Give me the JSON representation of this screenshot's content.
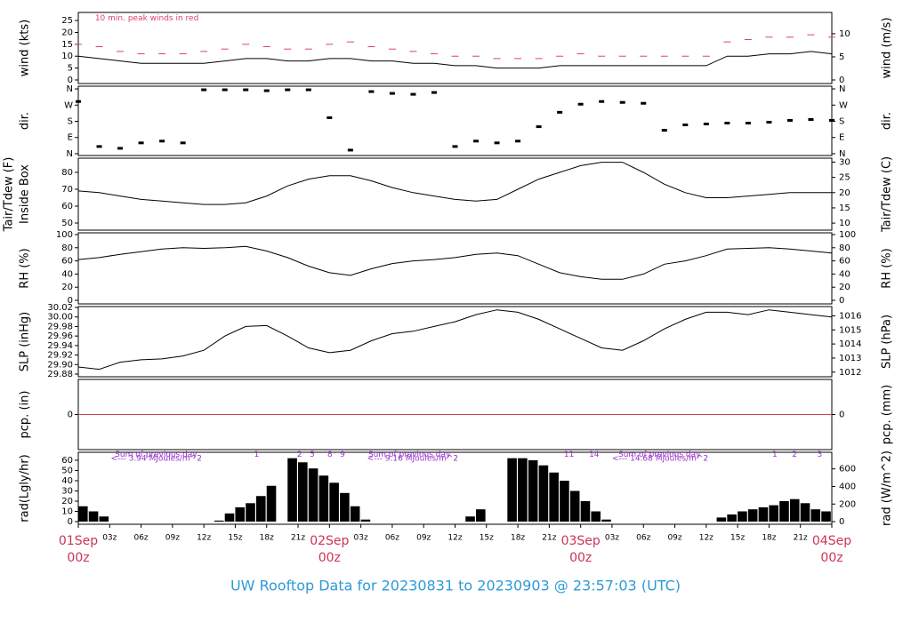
{
  "footer": "UW Rooftop Data for 20230831  to  20230903 @ 23:57:03  (UTC)",
  "x_axis": {
    "xlim": [
      0,
      72
    ],
    "xticks": [
      {
        "value": 0,
        "label": "01Sep",
        "sub": "00z"
      },
      {
        "value": 3,
        "label": "03z"
      },
      {
        "value": 6,
        "label": "06z"
      },
      {
        "value": 9,
        "label": "09z"
      },
      {
        "value": 12,
        "label": "12z"
      },
      {
        "value": 15,
        "label": "15z"
      },
      {
        "value": 18,
        "label": "18z"
      },
      {
        "value": 21,
        "label": "21z"
      },
      {
        "value": 24,
        "label": "02Sep",
        "sub": "00z"
      },
      {
        "value": 27,
        "label": "03z"
      },
      {
        "value": 30,
        "label": "06z"
      },
      {
        "value": 33,
        "label": "09z"
      },
      {
        "value": 36,
        "label": "12z"
      },
      {
        "value": 39,
        "label": "15z"
      },
      {
        "value": 42,
        "label": "18z"
      },
      {
        "value": 45,
        "label": "21z"
      },
      {
        "value": 48,
        "label": "03Sep",
        "sub": "00z"
      },
      {
        "value": 51,
        "label": "03z"
      },
      {
        "value": 54,
        "label": "06z"
      },
      {
        "value": 57,
        "label": "09z"
      },
      {
        "value": 60,
        "label": "12z"
      },
      {
        "value": 63,
        "label": "15z"
      },
      {
        "value": 66,
        "label": "18z"
      },
      {
        "value": 69,
        "label": "21z"
      },
      {
        "value": 72,
        "label": "04Sep",
        "sub": "00z"
      }
    ]
  },
  "chart_data": [
    {
      "type": "line",
      "ylabel": "wind (kts)",
      "y2label": "wind (m/s)",
      "annotations": [
        {
          "x": 1.6,
          "y": 26,
          "label": "10 min. peak winds in red",
          "color": "#e0406a"
        }
      ],
      "ylim": [
        -1.5,
        28.4
      ],
      "yticks": [
        0,
        5,
        10,
        15,
        20,
        25
      ],
      "y2lim": [
        -0.77,
        14.6
      ],
      "y2ticks": [
        0,
        5,
        10
      ],
      "x": [
        0,
        2,
        4,
        6,
        8,
        10,
        12,
        14,
        16,
        18,
        20,
        22,
        24,
        26,
        28,
        30,
        32,
        34,
        36,
        38,
        40,
        42,
        44,
        46,
        48,
        50,
        52,
        54,
        56,
        58,
        60,
        62,
        64,
        66,
        68,
        70,
        72
      ],
      "series": [
        {
          "color": "#000000",
          "values": [
            10,
            9,
            8,
            7,
            7,
            7,
            7,
            8,
            9,
            9,
            8,
            8,
            9,
            9,
            8,
            8,
            7,
            7,
            6,
            6,
            5,
            5,
            5,
            6,
            6,
            6,
            6,
            6,
            6,
            6,
            6,
            10,
            10,
            11,
            11,
            12,
            11
          ]
        },
        {
          "color": "#e0406a",
          "style": "dash",
          "values": [
            15,
            14,
            12,
            11,
            11,
            11,
            12,
            13,
            15,
            14,
            13,
            13,
            15,
            16,
            14,
            13,
            12,
            11,
            10,
            10,
            9,
            9,
            9,
            10,
            11,
            10,
            10,
            10,
            10,
            10,
            10,
            16,
            17,
            18,
            18,
            19,
            18
          ]
        }
      ]
    },
    {
      "type": "scatter",
      "ylabel": "dir.",
      "y2label": "dir.",
      "color": "#000000",
      "ylim": [
        -10,
        375
      ],
      "yticks": [
        {
          "value": 0,
          "label": "N"
        },
        {
          "value": 90,
          "label": "E"
        },
        {
          "value": 180,
          "label": "S"
        },
        {
          "value": 270,
          "label": "W"
        },
        {
          "value": 360,
          "label": "N"
        }
      ],
      "y2lim": [
        -10,
        375
      ],
      "y2ticks": [
        {
          "value": 0,
          "label": "N"
        },
        {
          "value": 90,
          "label": "E"
        },
        {
          "value": 180,
          "label": "S"
        },
        {
          "value": 270,
          "label": "W"
        },
        {
          "value": 360,
          "label": "N"
        }
      ],
      "x": [
        0,
        2,
        4,
        6,
        8,
        10,
        12,
        14,
        16,
        18,
        20,
        22,
        24,
        26,
        28,
        30,
        32,
        34,
        36,
        38,
        40,
        42,
        44,
        46,
        48,
        50,
        52,
        54,
        56,
        58,
        60,
        62,
        64,
        66,
        68,
        70,
        72
      ],
      "values": [
        290,
        40,
        30,
        60,
        70,
        60,
        355,
        355,
        355,
        350,
        355,
        355,
        200,
        20,
        345,
        335,
        330,
        340,
        40,
        70,
        60,
        70,
        150,
        230,
        275,
        290,
        285,
        280,
        130,
        160,
        165,
        170,
        170,
        175,
        185,
        190,
        185
      ]
    },
    {
      "type": "line",
      "ylabel": "Tair/Tdew (F)",
      "ylabel_sub": "Inside Box",
      "y2label": "Tair/Tdew (C)",
      "ylim": [
        45.8,
        88.4
      ],
      "yticks": [
        50,
        60,
        70,
        80
      ],
      "y2lim": [
        7.7,
        31.3
      ],
      "y2ticks": [
        10,
        15,
        20,
        25,
        30
      ],
      "x": [
        0,
        2,
        4,
        6,
        8,
        10,
        12,
        14,
        16,
        18,
        20,
        22,
        24,
        26,
        28,
        30,
        32,
        34,
        36,
        38,
        40,
        42,
        44,
        46,
        48,
        50,
        52,
        54,
        56,
        58,
        60,
        62,
        64,
        66,
        68,
        70,
        72
      ],
      "series": [
        {
          "color": "#000000",
          "values": [
            69,
            68,
            66,
            64,
            63,
            62,
            61,
            61,
            62,
            66,
            72,
            76,
            78,
            78,
            75,
            71,
            68,
            66,
            64,
            63,
            64,
            70,
            76,
            80,
            84,
            86,
            86,
            80,
            73,
            68,
            65,
            65,
            66,
            67,
            68,
            68,
            68
          ]
        }
      ]
    },
    {
      "type": "line",
      "ylabel": "RH (%)",
      "y2label": "RH (%)",
      "ylim": [
        -5.4,
        102.7
      ],
      "yticks": [
        0,
        20,
        40,
        60,
        80,
        100
      ],
      "y2lim": [
        -5.4,
        102.7
      ],
      "y2ticks": [
        0,
        20,
        40,
        60,
        80,
        100
      ],
      "x": [
        0,
        2,
        4,
        6,
        8,
        10,
        12,
        14,
        16,
        18,
        20,
        22,
        24,
        26,
        28,
        30,
        32,
        34,
        36,
        38,
        40,
        42,
        44,
        46,
        48,
        50,
        52,
        54,
        56,
        58,
        60,
        62,
        64,
        66,
        68,
        70,
        72
      ],
      "series": [
        {
          "color": "#000000",
          "values": [
            62,
            65,
            70,
            74,
            78,
            80,
            79,
            80,
            82,
            75,
            65,
            52,
            42,
            38,
            48,
            56,
            60,
            62,
            65,
            70,
            72,
            68,
            55,
            42,
            36,
            32,
            32,
            40,
            55,
            60,
            68,
            78,
            79,
            80,
            78,
            75,
            72
          ]
        }
      ]
    },
    {
      "type": "line",
      "ylabel": "SLP (inHg)",
      "y2label": "SLP (hPa)",
      "ylim": [
        29.8744,
        30.0219
      ],
      "yticks": [
        29.88,
        {
          "value": 29.9,
          "label": "29.90"
        },
        29.92,
        29.94,
        29.96,
        29.98,
        {
          "value": 30,
          "label": "30.00"
        },
        30.02
      ],
      "y2lim": [
        1011.67,
        1016.66
      ],
      "y2ticks": [
        1012,
        1013,
        1014,
        1015,
        1016
      ],
      "x": [
        0,
        2,
        4,
        6,
        8,
        10,
        12,
        14,
        16,
        18,
        20,
        22,
        24,
        26,
        28,
        30,
        32,
        34,
        36,
        38,
        40,
        42,
        44,
        46,
        48,
        50,
        52,
        54,
        56,
        58,
        60,
        62,
        64,
        66,
        68,
        70,
        72
      ],
      "series": [
        {
          "color": "#000000",
          "values": [
            29.895,
            29.89,
            29.905,
            29.91,
            29.912,
            29.918,
            29.93,
            29.96,
            29.98,
            29.982,
            29.96,
            29.935,
            29.925,
            29.93,
            29.95,
            29.965,
            29.97,
            29.98,
            29.99,
            30.005,
            30.015,
            30.01,
            29.995,
            29.975,
            29.955,
            29.935,
            29.93,
            29.95,
            29.975,
            29.995,
            30.01,
            30.01,
            30.005,
            30.015,
            30.01,
            30.005,
            30.0
          ]
        }
      ]
    },
    {
      "type": "line",
      "ylabel": "pcp. (in)",
      "y2label": "pcp. (mm)",
      "ylim": [
        -0.05,
        0.05
      ],
      "yticks": [
        0
      ],
      "y2lim": [
        -1.27,
        1.27
      ],
      "y2ticks": [
        0
      ],
      "x": [
        0,
        72
      ],
      "series": [
        {
          "color": "#d04050",
          "values": [
            0,
            0
          ]
        }
      ]
    },
    {
      "type": "bar",
      "ylabel": "rad(Lgly/hr)",
      "y2label": "rad (W/m^2)",
      "color": "#000000",
      "ylim": [
        -2.6,
        67.8
      ],
      "yticks": [
        0,
        10,
        20,
        30,
        40,
        50,
        60
      ],
      "y2lim": [
        -30,
        789
      ],
      "y2ticks": [
        0,
        200,
        400,
        600
      ],
      "annotations": [
        {
          "x": 3.5,
          "y": 65.5,
          "label": "Sum of previous day",
          "color": "#9933cc"
        },
        {
          "x": 3.1,
          "y": 61.5,
          "label": "<--- 3.94 MJoules/m^2",
          "color": "#9933cc"
        },
        {
          "x": 27.7,
          "y": 65.5,
          "label": "Sum of previous day",
          "color": "#9933cc"
        },
        {
          "x": 27.6,
          "y": 61.5,
          "label": "<--- 9.16 MJoules/m^2",
          "color": "#9933cc"
        },
        {
          "x": 51.6,
          "y": 65.5,
          "label": "Sum of previous day",
          "color": "#9933cc"
        },
        {
          "x": 51.0,
          "y": 61.5,
          "label": "<--- 14.68 MJoules/m^2",
          "color": "#9933cc"
        },
        {
          "x": 16.8,
          "y": 65.5,
          "label": "1",
          "color": "#9933cc"
        },
        {
          "x": 20.9,
          "y": 65.5,
          "label": "2",
          "color": "#9933cc"
        },
        {
          "x": 22.1,
          "y": 65.5,
          "label": "5",
          "color": "#9933cc"
        },
        {
          "x": 23.8,
          "y": 65.5,
          "label": "8",
          "color": "#9933cc"
        },
        {
          "x": 25.0,
          "y": 65.5,
          "label": "9",
          "color": "#9933cc"
        },
        {
          "x": 46.4,
          "y": 65.5,
          "label": "11",
          "color": "#9933cc"
        },
        {
          "x": 48.8,
          "y": 65.5,
          "label": "14",
          "color": "#9933cc"
        },
        {
          "x": 66.3,
          "y": 65.5,
          "label": "1",
          "color": "#9933cc"
        },
        {
          "x": 68.2,
          "y": 65.5,
          "label": "2",
          "color": "#9933cc"
        },
        {
          "x": 70.6,
          "y": 65.5,
          "label": "3",
          "color": "#9933cc"
        }
      ],
      "x": [
        0,
        1,
        2,
        3,
        4,
        5,
        6,
        7,
        8,
        9,
        10,
        11,
        12,
        13,
        14,
        15,
        16,
        17,
        18,
        19,
        20,
        21,
        22,
        23,
        24,
        25,
        26,
        27,
        28,
        29,
        30,
        31,
        32,
        33,
        34,
        35,
        36,
        37,
        38,
        39,
        40,
        41,
        42,
        43,
        44,
        45,
        46,
        47,
        48,
        49,
        50,
        51,
        52,
        53,
        54,
        55,
        56,
        57,
        58,
        59,
        60,
        61,
        62,
        63,
        64,
        65,
        66,
        67,
        68,
        69,
        70,
        71
      ],
      "values": [
        15,
        10,
        5,
        0,
        0,
        0,
        0,
        0,
        0,
        0,
        0,
        0,
        0,
        1,
        8,
        14,
        18,
        25,
        35,
        0,
        62,
        58,
        52,
        45,
        38,
        28,
        15,
        2,
        0,
        0,
        0,
        0,
        0,
        0,
        0,
        0,
        0,
        5,
        12,
        0,
        0,
        62,
        62,
        60,
        55,
        48,
        40,
        30,
        20,
        10,
        2,
        0,
        0,
        0,
        0,
        0,
        0,
        0,
        0,
        0,
        0,
        4,
        7,
        10,
        12,
        14,
        16,
        20,
        22,
        18,
        12,
        10
      ]
    }
  ]
}
